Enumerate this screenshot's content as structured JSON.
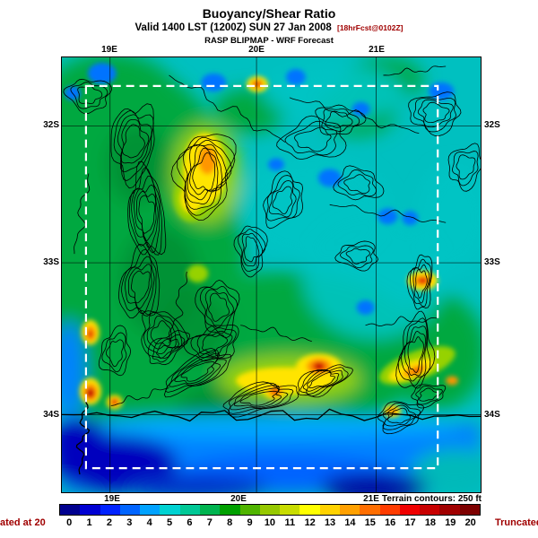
{
  "header": {
    "title": "Buoyancy/Shear Ratio",
    "valid_line": "Valid 1400 LST (1200Z) SUN 27 Jan 2008",
    "forecast_tag": "[18hrFcst@0102Z]",
    "model_line": "RASP BLIPMAP - WRF Forecast"
  },
  "map": {
    "lon_ticks": [
      "19E",
      "20E",
      "21E"
    ],
    "lat_ticks": [
      "32S",
      "33S",
      "34S"
    ],
    "terrain_note": "Terrain contours: 250 ft"
  },
  "colorbar": {
    "values": [
      "0",
      "1",
      "2",
      "3",
      "4",
      "5",
      "6",
      "7",
      "8",
      "9",
      "10",
      "11",
      "12",
      "13",
      "14",
      "15",
      "16",
      "17",
      "18",
      "19",
      "20"
    ],
    "colors": [
      "#00008f",
      "#0000d2",
      "#0022ff",
      "#0064ff",
      "#00a2ff",
      "#00d2d2",
      "#00c896",
      "#00b450",
      "#00a000",
      "#50b400",
      "#96c800",
      "#c8dc00",
      "#ffff00",
      "#ffd200",
      "#ffa000",
      "#ff6e00",
      "#ff3c00",
      "#f00000",
      "#c80000",
      "#a00000",
      "#7d0000"
    ],
    "left_truncation": "ated at 20",
    "right_truncation": "Truncated"
  },
  "chart_data": {
    "type": "heatmap",
    "title": "Buoyancy/Shear Ratio",
    "valid": "Valid 1400 LST (1200Z) SUN 27 Jan 2008",
    "model": "RASP BLIPMAP - WRF Forecast",
    "x_ticks": [
      "19E",
      "20E",
      "21E"
    ],
    "y_ticks": [
      "32S",
      "33S",
      "34S"
    ],
    "scale_values": [
      0,
      1,
      2,
      3,
      4,
      5,
      6,
      7,
      8,
      9,
      10,
      11,
      12,
      13,
      14,
      15,
      16,
      17,
      18,
      19,
      20
    ],
    "scale_truncated_at": 20,
    "terrain_contour_interval": "250 ft"
  }
}
